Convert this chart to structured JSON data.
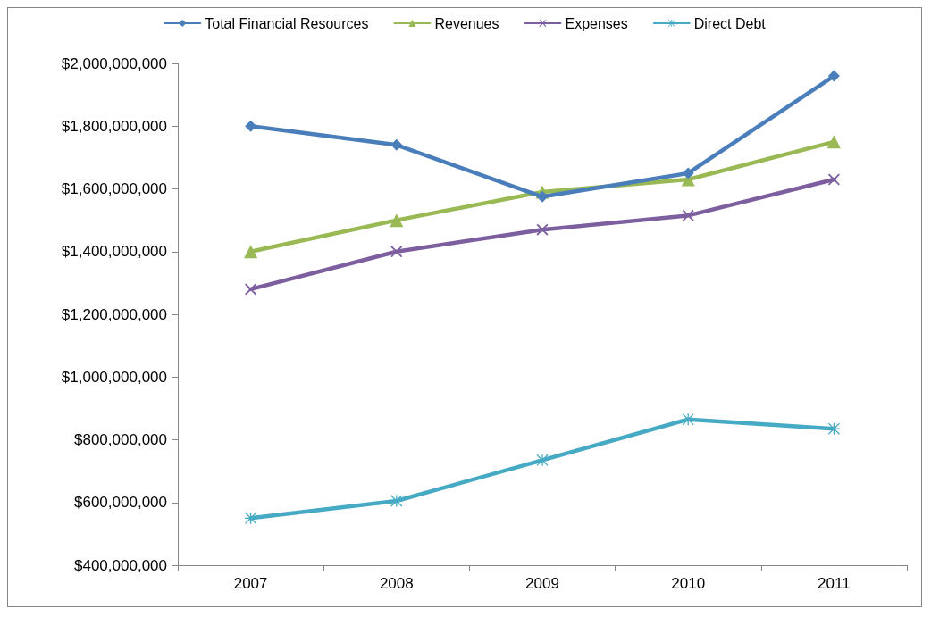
{
  "chart_data": {
    "type": "line",
    "categories": [
      "2007",
      "2008",
      "2009",
      "2010",
      "2011"
    ],
    "series": [
      {
        "name": "Total Financial Resources",
        "color": "#4a7ebb",
        "marker": "diamond",
        "values": [
          1800000000,
          1740000000,
          1575000000,
          1650000000,
          1960000000
        ]
      },
      {
        "name": "Revenues",
        "color": "#98b954",
        "marker": "triangle",
        "values": [
          1400000000,
          1500000000,
          1590000000,
          1630000000,
          1750000000
        ]
      },
      {
        "name": "Expenses",
        "color": "#7d5fa0",
        "marker": "cross",
        "values": [
          1280000000,
          1400000000,
          1470000000,
          1515000000,
          1630000000
        ]
      },
      {
        "name": "Direct Debt",
        "color": "#46aac5",
        "marker": "star",
        "values": [
          550000000,
          605000000,
          735000000,
          865000000,
          835000000
        ]
      }
    ],
    "ylim": [
      400000000,
      2000000000
    ],
    "yticks": [
      {
        "value": 400000000,
        "label": "$400,000,000"
      },
      {
        "value": 600000000,
        "label": "$600,000,000"
      },
      {
        "value": 800000000,
        "label": "$800,000,000"
      },
      {
        "value": 1000000000,
        "label": "$1,000,000,000"
      },
      {
        "value": 1200000000,
        "label": "$1,200,000,000"
      },
      {
        "value": 1400000000,
        "label": "$1,400,000,000"
      },
      {
        "value": 1600000000,
        "label": "$1,600,000,000"
      },
      {
        "value": 1800000000,
        "label": "$1,800,000,000"
      },
      {
        "value": 2000000000,
        "label": "$2,000,000,000"
      }
    ],
    "grid": false,
    "legend": "top",
    "line_style": "solid"
  }
}
